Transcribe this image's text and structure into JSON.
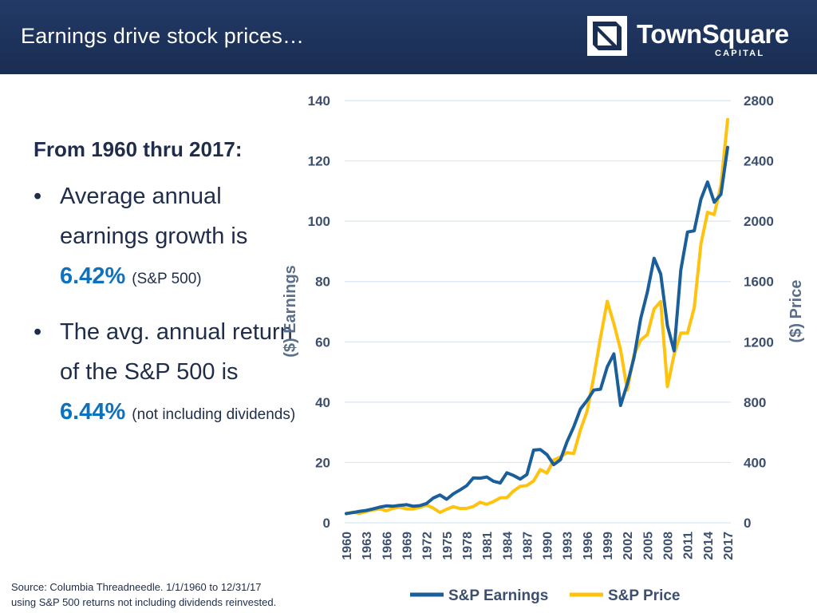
{
  "header": {
    "title": "Earnings drive stock prices…",
    "logo": {
      "name": "TownSquare",
      "sub": "CAPITAL",
      "icon": "townsquare-logo-icon"
    }
  },
  "content": {
    "subheading": "From 1960 thru 2017:",
    "bullets": [
      {
        "text": "Average annual earnings growth is",
        "value": "6.42%",
        "note": "(S&P 500)"
      },
      {
        "text": "The avg. annual return of the S&P 500 is",
        "value": "6.44%",
        "note": "(not including dividends)"
      }
    ]
  },
  "source": {
    "line1": "Source: Columbia Threadneedle.  1/1/1960 to 12/31/17",
    "line2": "using S&P 500 returns not including dividends reinvested."
  },
  "colors": {
    "header_bg": "#1a2d52",
    "earnings": "#1a5e9a",
    "price": "#ffc20e",
    "highlight": "#0c72c0"
  },
  "chart_data": {
    "type": "line",
    "title": "",
    "xlabel": "",
    "ylabel": "($) Earnings",
    "y2label": "($) Price",
    "ylim": [
      0,
      140
    ],
    "y2lim": [
      0,
      2800
    ],
    "yticks": [
      "0",
      "20",
      "40",
      "60",
      "80",
      "100",
      "120",
      "140"
    ],
    "y2ticks": [
      "0",
      "400",
      "800",
      "1200",
      "1600",
      "2000",
      "2400",
      "2800"
    ],
    "x_tick_labels": [
      "1960",
      "1963",
      "1966",
      "1969",
      "1972",
      "1975",
      "1978",
      "1981",
      "1984",
      "1987",
      "1990",
      "1993",
      "1996",
      "1999",
      "2002",
      "2005",
      "2008",
      "2011",
      "2014",
      "2017"
    ],
    "grid": true,
    "legend_position": "bottom",
    "x": [
      1960,
      1961,
      1962,
      1963,
      1964,
      1965,
      1966,
      1967,
      1968,
      1969,
      1970,
      1971,
      1972,
      1973,
      1974,
      1975,
      1976,
      1977,
      1978,
      1979,
      1980,
      1981,
      1982,
      1983,
      1984,
      1985,
      1986,
      1987,
      1988,
      1989,
      1990,
      1991,
      1992,
      1993,
      1994,
      1995,
      1996,
      1997,
      1998,
      1999,
      2000,
      2001,
      2002,
      2003,
      2004,
      2005,
      2006,
      2007,
      2008,
      2009,
      2010,
      2011,
      2012,
      2013,
      2014,
      2015,
      2016,
      2017
    ],
    "series": [
      {
        "name": "S&P Earnings",
        "axis": "left",
        "color": "#1a5e9a",
        "values": [
          3.1,
          3.4,
          3.8,
          4.1,
          4.6,
          5.2,
          5.6,
          5.5,
          5.8,
          6.0,
          5.5,
          5.7,
          6.4,
          8.2,
          9.2,
          7.8,
          9.6,
          10.9,
          12.3,
          14.9,
          14.8,
          15.2,
          13.8,
          13.2,
          16.6,
          15.7,
          14.5,
          16.0,
          24.1,
          24.3,
          22.6,
          19.3,
          20.9,
          26.9,
          31.8,
          37.7,
          40.6,
          44.0,
          44.3,
          51.7,
          56.0,
          38.9,
          46.0,
          54.7,
          67.7,
          76.5,
          87.7,
          82.5,
          65.4,
          57.0,
          83.8,
          96.4,
          96.8,
          107.3,
          113.0,
          106.3,
          108.9,
          124.5
        ]
      },
      {
        "name": "S&P Price",
        "axis": "right",
        "color": "#ffc20e",
        "values": [
          58,
          71,
          63,
          75,
          85,
          92,
          80,
          96,
          104,
          92,
          92,
          102,
          118,
          98,
          69,
          90,
          107,
          95,
          96,
          108,
          136,
          123,
          141,
          165,
          167,
          211,
          242,
          247,
          278,
          353,
          330,
          417,
          436,
          466,
          459,
          616,
          741,
          970,
          1229,
          1469,
          1320,
          1148,
          880,
          1112,
          1212,
          1248,
          1418,
          1468,
          903,
          1115,
          1258,
          1258,
          1426,
          1848,
          2059,
          2044,
          2239,
          2674
        ]
      }
    ]
  }
}
